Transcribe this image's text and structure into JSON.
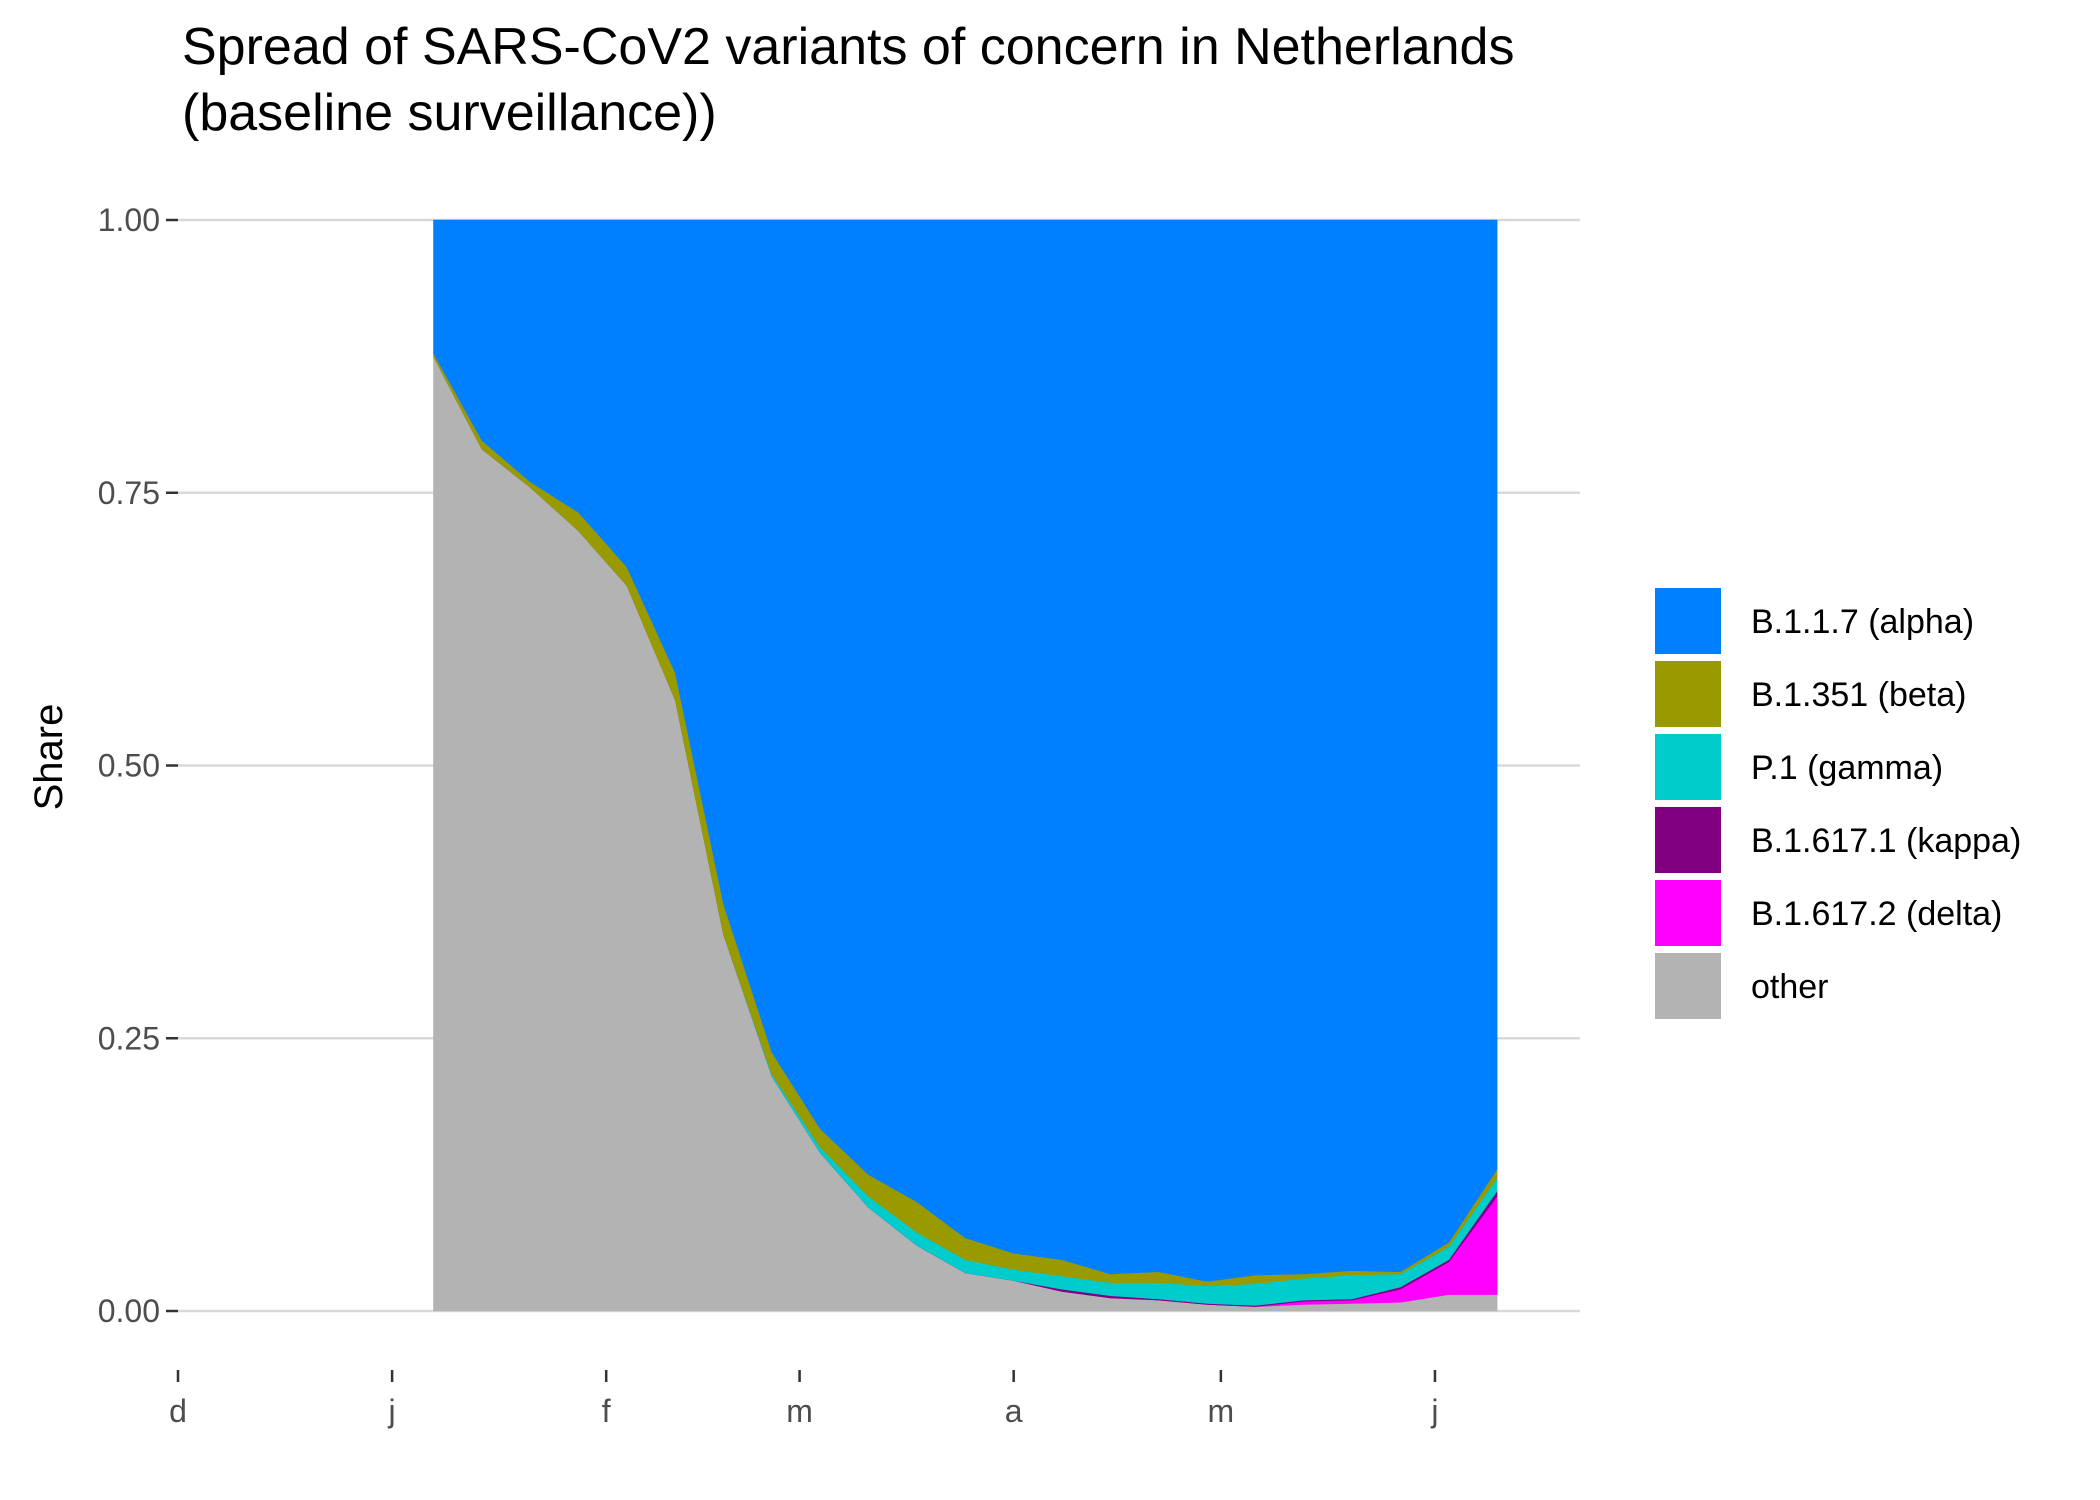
{
  "chart_data": {
    "type": "area",
    "stacked": true,
    "title_lines": [
      "Spread of SARS-CoV2 variants of concern in Netherlands",
      "(baseline surveillance))"
    ],
    "xlabel": "",
    "ylabel": "Share",
    "ylim": [
      0,
      1
    ],
    "y_ticks": [
      "0.00",
      "0.25",
      "0.50",
      "0.75",
      "1.00"
    ],
    "xlim": [
      "2020-12-01",
      "2021-06-22"
    ],
    "x_ticks": [
      {
        "date": "2020-12-01",
        "label": "d"
      },
      {
        "date": "2021-01-01",
        "label": "j"
      },
      {
        "date": "2021-02-01",
        "label": "f"
      },
      {
        "date": "2021-03-01",
        "label": "m"
      },
      {
        "date": "2021-04-01",
        "label": "a"
      },
      {
        "date": "2021-05-01",
        "label": "m"
      },
      {
        "date": "2021-06-01",
        "label": "j"
      }
    ],
    "grid": "horizontal major lines only",
    "legend_position": "right",
    "x": [
      "2021-01-07",
      "2021-01-14",
      "2021-01-21",
      "2021-01-28",
      "2021-02-04",
      "2021-02-11",
      "2021-02-18",
      "2021-02-25",
      "2021-03-04",
      "2021-03-11",
      "2021-03-18",
      "2021-03-25",
      "2021-04-01",
      "2021-04-08",
      "2021-04-15",
      "2021-04-22",
      "2021-04-29",
      "2021-05-06",
      "2021-05-13",
      "2021-05-20",
      "2021-05-27",
      "2021-06-03",
      "2021-06-10"
    ],
    "series": [
      {
        "name": "other",
        "color": "#b3b3b3",
        "values": [
          0.875,
          0.79,
          0.755,
          0.715,
          0.665,
          0.56,
          0.345,
          0.215,
          0.145,
          0.095,
          0.06,
          0.035,
          0.028,
          0.018,
          0.012,
          0.01,
          0.006,
          0.004,
          0.006,
          0.007,
          0.008,
          0.015,
          0.015
        ]
      },
      {
        "name": "B.1.617.2 (delta)",
        "color": "#ff00ff",
        "values": [
          0,
          0,
          0,
          0,
          0,
          0,
          0,
          0,
          0,
          0,
          0,
          0,
          0,
          0,
          0,
          0,
          0,
          0,
          0.003,
          0.003,
          0.012,
          0.03,
          0.09
        ]
      },
      {
        "name": "B.1.617.1 (kappa)",
        "color": "#800080",
        "values": [
          0,
          0,
          0,
          0,
          0,
          0,
          0,
          0,
          0,
          0,
          0,
          0,
          0,
          0.002,
          0.002,
          0.001,
          0.001,
          0.001,
          0.001,
          0.001,
          0.002,
          0.002,
          0.005
        ]
      },
      {
        "name": "P.1 (gamma)",
        "color": "#00cccc",
        "values": [
          0,
          0,
          0,
          0,
          0,
          0,
          0,
          0.002,
          0.005,
          0.01,
          0.012,
          0.012,
          0.01,
          0.012,
          0.012,
          0.015,
          0.016,
          0.02,
          0.02,
          0.022,
          0.012,
          0.012,
          0.012
        ]
      },
      {
        "name": "B.1.351 (beta)",
        "color": "#999900",
        "values": [
          0.003,
          0.008,
          0.005,
          0.017,
          0.017,
          0.025,
          0.028,
          0.02,
          0.017,
          0.02,
          0.028,
          0.02,
          0.015,
          0.015,
          0.008,
          0.01,
          0.004,
          0.008,
          0.004,
          0.004,
          0.002,
          0.004,
          0.008
        ]
      },
      {
        "name": "B.1.1.7 (alpha)",
        "color": "#0080ff",
        "values": [
          0.122,
          0.202,
          0.24,
          0.268,
          0.318,
          0.415,
          0.627,
          0.763,
          0.833,
          0.875,
          0.9,
          0.933,
          0.947,
          0.953,
          0.966,
          0.964,
          0.973,
          0.967,
          0.966,
          0.963,
          0.964,
          0.937,
          0.87
        ]
      }
    ],
    "legend_entries": [
      {
        "label": "B.1.1.7 (alpha)",
        "color": "#0080ff"
      },
      {
        "label": "B.1.351 (beta)",
        "color": "#999900"
      },
      {
        "label": "P.1 (gamma)",
        "color": "#00cccc"
      },
      {
        "label": "B.1.617.1 (kappa)",
        "color": "#800080"
      },
      {
        "label": "B.1.617.2 (delta)",
        "color": "#ff00ff"
      },
      {
        "label": "other",
        "color": "#b3b3b3"
      }
    ]
  }
}
